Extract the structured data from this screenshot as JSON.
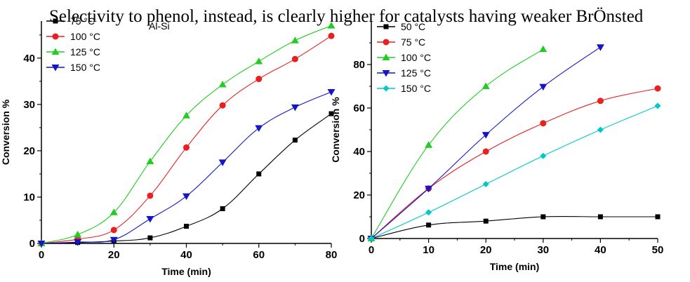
{
  "overlay_text": "Selectivity to phenol, instead, is clearly higher for catalysts having weaker BrÖnsted",
  "chart_data": [
    {
      "type": "line",
      "title": "",
      "annotation": "Al-Si",
      "xlabel": "Time (min)",
      "ylabel": "Conversion %",
      "xlim": [
        0,
        80
      ],
      "ylim": [
        0,
        48
      ],
      "xticks": [
        "0",
        "20",
        "40",
        "60",
        "80"
      ],
      "yticks": [
        "0",
        "10",
        "20",
        "30",
        "40"
      ],
      "grid": false,
      "legend_position": "top-left",
      "series": [
        {
          "name": "75 °C",
          "color": "#000000",
          "marker": "square",
          "x": [
            0,
            10,
            20,
            30,
            40,
            50,
            60,
            70,
            80
          ],
          "y": [
            0,
            0.2,
            0.5,
            1.2,
            3.7,
            7.5,
            15,
            22.3,
            28
          ]
        },
        {
          "name": "100 °C",
          "color": "#e8201f",
          "marker": "circle",
          "x": [
            0,
            10,
            20,
            30,
            40,
            50,
            60,
            70,
            80
          ],
          "y": [
            0,
            0.9,
            2.9,
            10.3,
            20.7,
            29.8,
            35.5,
            39.8,
            44.8
          ]
        },
        {
          "name": "125 °C",
          "color": "#22cc22",
          "marker": "triangle-up",
          "x": [
            0,
            10,
            20,
            30,
            40,
            50,
            60,
            70,
            80
          ],
          "y": [
            0,
            1.9,
            6.7,
            17.7,
            27.6,
            34.3,
            39.3,
            43.8,
            47
          ]
        },
        {
          "name": "150 °C",
          "color": "#1515c8",
          "marker": "triangle-down",
          "x": [
            0,
            10,
            20,
            30,
            40,
            50,
            60,
            70,
            80
          ],
          "y": [
            0,
            0.3,
            0.8,
            5.3,
            10.2,
            17.5,
            24.9,
            29.4,
            32.7
          ]
        }
      ]
    },
    {
      "type": "line",
      "title": "",
      "xlabel": "Time (min)",
      "ylabel": "Conversion %",
      "xlim": [
        0,
        50
      ],
      "ylim": [
        0,
        100
      ],
      "xticks": [
        "0",
        "10",
        "20",
        "30",
        "40",
        "50"
      ],
      "yticks": [
        "0",
        "20",
        "40",
        "60",
        "80"
      ],
      "grid": false,
      "legend_position": "top-left",
      "series": [
        {
          "name": "50 °C",
          "color": "#000000",
          "marker": "square",
          "x": [
            0,
            10,
            20,
            30,
            40,
            50
          ],
          "y": [
            0,
            6.2,
            8,
            10,
            10,
            10
          ]
        },
        {
          "name": "75 °C",
          "color": "#e8201f",
          "marker": "circle",
          "x": [
            0,
            10,
            20,
            30,
            40,
            50
          ],
          "y": [
            0,
            23,
            40,
            53,
            63.3,
            69
          ]
        },
        {
          "name": "100 °C",
          "color": "#22cc22",
          "marker": "triangle-up",
          "x": [
            0,
            10,
            20,
            30
          ],
          "y": [
            0,
            43,
            70,
            87
          ]
        },
        {
          "name": "125 °C",
          "color": "#1515c8",
          "marker": "triangle-down",
          "x": [
            0,
            10,
            20,
            30,
            40
          ],
          "y": [
            0,
            23,
            47.7,
            69.8,
            88
          ]
        },
        {
          "name": "150 °C",
          "color": "#00c8c8",
          "marker": "diamond",
          "x": [
            0,
            10,
            20,
            30,
            40,
            50
          ],
          "y": [
            0,
            12,
            25,
            38,
            50,
            61
          ]
        }
      ]
    }
  ]
}
